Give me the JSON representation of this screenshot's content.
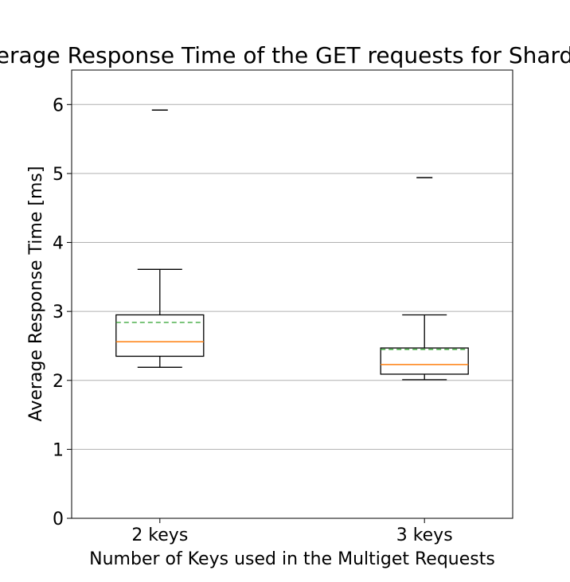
{
  "chart_data": {
    "type": "boxplot",
    "title": "Average Response Time of the GET requests for Sharded",
    "xlabel": "Number of Keys used in the Multiget Requests",
    "ylabel": "Average Response Time [ms]",
    "ylim": [
      0,
      6.5
    ],
    "yticks": [
      0,
      1,
      2,
      3,
      4,
      5,
      6
    ],
    "grid": "y",
    "categories": [
      "2 keys",
      "3 keys"
    ],
    "boxes": [
      {
        "label": "2 keys",
        "whisker_low": 2.19,
        "q1": 2.35,
        "median": 2.56,
        "mean": 2.84,
        "q3": 2.95,
        "whisker_high": 3.61,
        "fliers": [
          5.92
        ]
      },
      {
        "label": "3 keys",
        "whisker_low": 2.01,
        "q1": 2.09,
        "median": 2.23,
        "mean": 2.45,
        "q3": 2.47,
        "whisker_high": 2.95,
        "fliers": [
          4.94
        ]
      }
    ],
    "colors": {
      "median": "#ff7f0e",
      "mean": "#2ca02c",
      "box": "#000000",
      "grid": "#b0b0b0"
    }
  }
}
